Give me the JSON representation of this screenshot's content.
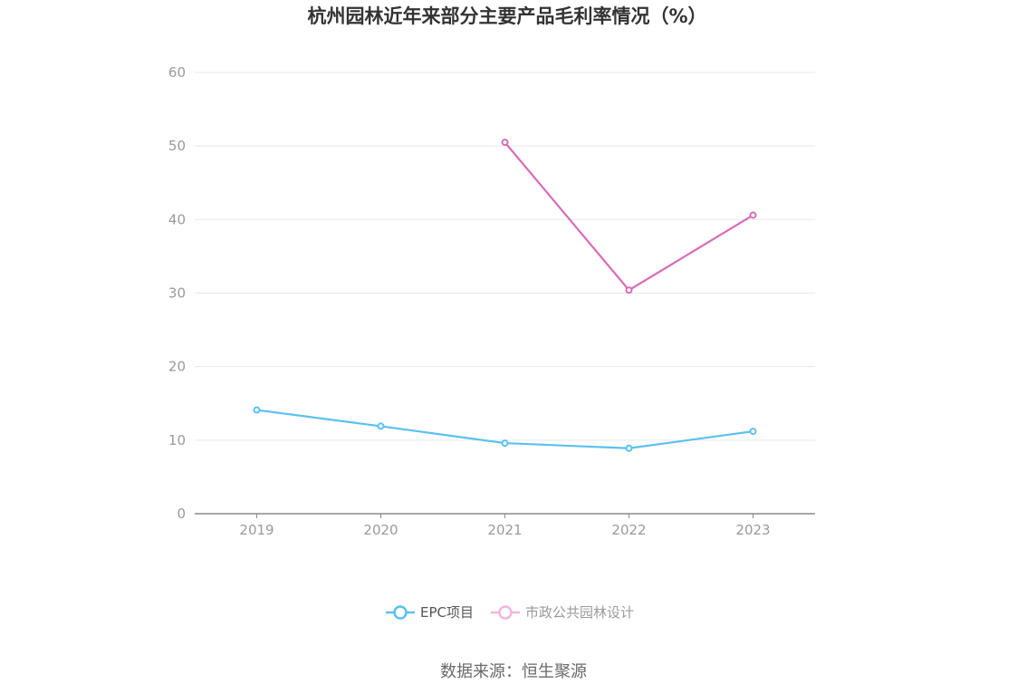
{
  "chart_data": {
    "type": "line",
    "title": "杭州园林近年来部分主要产品毛利率情况（%）",
    "xlabel": "",
    "ylabel": "",
    "categories": [
      "2019",
      "2020",
      "2021",
      "2022",
      "2023"
    ],
    "ylim": [
      0,
      60
    ],
    "yticks": [
      0,
      10,
      20,
      30,
      40,
      50,
      60
    ],
    "grid": true,
    "legend_position": "bottom",
    "series": [
      {
        "name": "EPC项目",
        "color": "#5bc0f0",
        "values": [
          14.1,
          11.9,
          9.6,
          8.9,
          11.2
        ]
      },
      {
        "name": "市政公共园林设计",
        "color": "#d86cb8",
        "values": [
          null,
          null,
          50.5,
          30.4,
          40.6
        ]
      }
    ]
  },
  "source": {
    "text": "数据来源：恒生聚源"
  },
  "legend_text_colors": {
    "active": "#555555",
    "inactive": "#9a9a9a"
  }
}
